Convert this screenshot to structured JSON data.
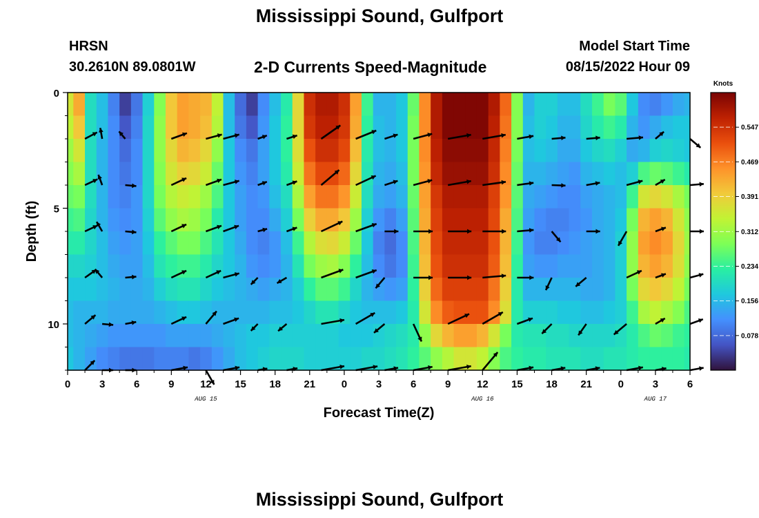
{
  "header": {
    "title": "Mississippi Sound, Gulfport",
    "station": "HRSN",
    "coords": "30.2610N  89.0801W",
    "subtitle": "2-D Currents Speed-Magnitude",
    "model_start_label": "Model Start Time",
    "model_start_value": "08/15/2022 Hour 09"
  },
  "footer": {
    "title": "Mississippi Sound, Gulfport"
  },
  "chart_data": {
    "type": "heatmap",
    "xlabel": "Forecast Time(Z)",
    "ylabel": "Depth (ft)",
    "x_range_hours": [
      0,
      54
    ],
    "y_range_ft": [
      0,
      12
    ],
    "x_ticks": [
      {
        "h": 0,
        "label": "0"
      },
      {
        "h": 3,
        "label": "3"
      },
      {
        "h": 6,
        "label": "6"
      },
      {
        "h": 9,
        "label": "9"
      },
      {
        "h": 12,
        "label": "12"
      },
      {
        "h": 15,
        "label": "15"
      },
      {
        "h": 18,
        "label": "18"
      },
      {
        "h": 21,
        "label": "21"
      },
      {
        "h": 24,
        "label": "0"
      },
      {
        "h": 27,
        "label": "3"
      },
      {
        "h": 30,
        "label": "6"
      },
      {
        "h": 33,
        "label": "9"
      },
      {
        "h": 36,
        "label": "12"
      },
      {
        "h": 39,
        "label": "15"
      },
      {
        "h": 42,
        "label": "18"
      },
      {
        "h": 45,
        "label": "21"
      },
      {
        "h": 48,
        "label": "0"
      },
      {
        "h": 51,
        "label": "3"
      },
      {
        "h": 54,
        "label": "6"
      }
    ],
    "date_labels": [
      {
        "h": 12,
        "label": "AUG 15"
      },
      {
        "h": 36,
        "label": "AUG 16"
      },
      {
        "h": 51,
        "label": "AUG 17"
      }
    ],
    "y_ticks": [
      {
        "ft": 0,
        "label": "0"
      },
      {
        "ft": 5,
        "label": "5"
      },
      {
        "ft": 10,
        "label": "10"
      }
    ],
    "colorbar": {
      "title": "Knots",
      "min": 0.0,
      "max": 0.625,
      "labels": [
        "0.078",
        "0.156",
        "0.234",
        "0.312",
        "0.391",
        "0.469",
        "0.547"
      ],
      "colors": [
        "#30123b",
        "#4454c4",
        "#4490fe",
        "#1fc8de",
        "#29efa2",
        "#7dff56",
        "#c1f334",
        "#f1ca3a",
        "#fe922a",
        "#ea4f0d",
        "#be2102",
        "#7a0403"
      ]
    },
    "depths_ft": [
      1,
      2,
      3,
      4,
      5,
      6,
      7,
      8,
      9,
      10,
      11,
      12
    ],
    "hours": [
      0,
      1,
      2,
      3,
      4,
      5,
      6,
      7,
      8,
      9,
      10,
      11,
      12,
      13,
      14,
      15,
      16,
      17,
      18,
      19,
      20,
      21,
      22,
      23,
      24,
      25,
      26,
      27,
      28,
      29,
      30,
      31,
      32,
      33,
      34,
      35,
      36,
      37,
      38,
      39,
      40,
      41,
      42,
      43,
      44,
      45,
      46,
      47,
      48,
      49,
      50,
      51,
      52,
      53,
      54
    ],
    "speed_knots": [
      [
        0.36,
        0.43,
        0.2,
        0.16,
        0.1,
        0.04,
        0.09,
        0.18,
        0.29,
        0.4,
        0.44,
        0.43,
        0.42,
        0.34,
        0.16,
        0.08,
        0.04,
        0.11,
        0.16,
        0.22,
        0.38,
        0.55,
        0.58,
        0.58,
        0.55,
        0.44,
        0.24,
        0.15,
        0.15,
        0.17,
        0.27,
        0.46,
        0.58,
        0.62,
        0.62,
        0.62,
        0.62,
        0.58,
        0.49,
        0.29,
        0.15,
        0.18,
        0.18,
        0.16,
        0.16,
        0.2,
        0.24,
        0.28,
        0.26,
        0.17,
        0.11,
        0.1,
        0.12,
        0.14,
        0.15
      ],
      [
        0.34,
        0.4,
        0.2,
        0.16,
        0.11,
        0.06,
        0.1,
        0.19,
        0.3,
        0.4,
        0.44,
        0.43,
        0.41,
        0.33,
        0.16,
        0.09,
        0.06,
        0.12,
        0.17,
        0.23,
        0.38,
        0.54,
        0.57,
        0.57,
        0.54,
        0.43,
        0.23,
        0.16,
        0.15,
        0.17,
        0.28,
        0.46,
        0.58,
        0.62,
        0.62,
        0.62,
        0.62,
        0.57,
        0.48,
        0.29,
        0.16,
        0.18,
        0.17,
        0.15,
        0.15,
        0.19,
        0.22,
        0.24,
        0.22,
        0.15,
        0.12,
        0.14,
        0.16,
        0.17,
        0.17
      ],
      [
        0.31,
        0.36,
        0.2,
        0.15,
        0.11,
        0.08,
        0.11,
        0.19,
        0.3,
        0.38,
        0.42,
        0.41,
        0.38,
        0.3,
        0.17,
        0.11,
        0.09,
        0.13,
        0.17,
        0.23,
        0.37,
        0.51,
        0.55,
        0.55,
        0.52,
        0.41,
        0.22,
        0.16,
        0.15,
        0.17,
        0.28,
        0.46,
        0.57,
        0.61,
        0.61,
        0.61,
        0.61,
        0.56,
        0.47,
        0.28,
        0.16,
        0.17,
        0.16,
        0.14,
        0.14,
        0.17,
        0.19,
        0.2,
        0.18,
        0.14,
        0.15,
        0.18,
        0.19,
        0.18,
        0.17
      ],
      [
        0.29,
        0.32,
        0.2,
        0.15,
        0.11,
        0.09,
        0.11,
        0.19,
        0.29,
        0.36,
        0.39,
        0.38,
        0.35,
        0.27,
        0.17,
        0.12,
        0.1,
        0.13,
        0.17,
        0.22,
        0.35,
        0.48,
        0.52,
        0.52,
        0.49,
        0.38,
        0.21,
        0.15,
        0.14,
        0.16,
        0.28,
        0.45,
        0.56,
        0.6,
        0.6,
        0.6,
        0.6,
        0.55,
        0.46,
        0.27,
        0.15,
        0.15,
        0.14,
        0.13,
        0.12,
        0.15,
        0.16,
        0.17,
        0.16,
        0.18,
        0.25,
        0.27,
        0.26,
        0.24,
        0.22
      ],
      [
        0.27,
        0.28,
        0.2,
        0.15,
        0.11,
        0.1,
        0.12,
        0.19,
        0.28,
        0.33,
        0.35,
        0.34,
        0.31,
        0.25,
        0.17,
        0.13,
        0.11,
        0.12,
        0.16,
        0.2,
        0.32,
        0.44,
        0.48,
        0.48,
        0.45,
        0.35,
        0.2,
        0.14,
        0.13,
        0.15,
        0.27,
        0.44,
        0.54,
        0.58,
        0.58,
        0.58,
        0.58,
        0.53,
        0.45,
        0.26,
        0.14,
        0.13,
        0.12,
        0.11,
        0.11,
        0.13,
        0.14,
        0.15,
        0.16,
        0.24,
        0.36,
        0.38,
        0.36,
        0.32,
        0.28
      ],
      [
        0.24,
        0.25,
        0.19,
        0.15,
        0.12,
        0.11,
        0.12,
        0.18,
        0.26,
        0.3,
        0.32,
        0.31,
        0.28,
        0.22,
        0.17,
        0.13,
        0.11,
        0.11,
        0.14,
        0.18,
        0.28,
        0.39,
        0.43,
        0.43,
        0.4,
        0.31,
        0.18,
        0.12,
        0.1,
        0.13,
        0.26,
        0.43,
        0.53,
        0.57,
        0.57,
        0.57,
        0.57,
        0.52,
        0.43,
        0.25,
        0.13,
        0.11,
        0.1,
        0.1,
        0.11,
        0.12,
        0.14,
        0.15,
        0.17,
        0.28,
        0.42,
        0.44,
        0.42,
        0.36,
        0.3
      ],
      [
        0.22,
        0.22,
        0.19,
        0.16,
        0.13,
        0.12,
        0.13,
        0.17,
        0.23,
        0.26,
        0.28,
        0.28,
        0.25,
        0.21,
        0.17,
        0.14,
        0.11,
        0.1,
        0.12,
        0.16,
        0.24,
        0.33,
        0.37,
        0.38,
        0.35,
        0.27,
        0.17,
        0.1,
        0.08,
        0.11,
        0.25,
        0.42,
        0.52,
        0.56,
        0.56,
        0.56,
        0.56,
        0.51,
        0.42,
        0.24,
        0.12,
        0.1,
        0.1,
        0.11,
        0.12,
        0.13,
        0.14,
        0.15,
        0.18,
        0.3,
        0.44,
        0.46,
        0.44,
        0.38,
        0.31
      ],
      [
        0.19,
        0.19,
        0.18,
        0.16,
        0.14,
        0.13,
        0.13,
        0.16,
        0.21,
        0.23,
        0.24,
        0.24,
        0.22,
        0.19,
        0.17,
        0.15,
        0.12,
        0.11,
        0.12,
        0.15,
        0.21,
        0.28,
        0.31,
        0.32,
        0.29,
        0.23,
        0.16,
        0.11,
        0.09,
        0.11,
        0.24,
        0.41,
        0.51,
        0.55,
        0.55,
        0.55,
        0.55,
        0.5,
        0.41,
        0.23,
        0.13,
        0.12,
        0.12,
        0.13,
        0.13,
        0.13,
        0.14,
        0.15,
        0.18,
        0.3,
        0.42,
        0.44,
        0.42,
        0.37,
        0.3
      ],
      [
        0.17,
        0.17,
        0.17,
        0.16,
        0.15,
        0.14,
        0.14,
        0.15,
        0.18,
        0.2,
        0.21,
        0.21,
        0.19,
        0.17,
        0.16,
        0.15,
        0.14,
        0.13,
        0.14,
        0.15,
        0.18,
        0.23,
        0.26,
        0.26,
        0.24,
        0.19,
        0.15,
        0.13,
        0.12,
        0.13,
        0.23,
        0.39,
        0.49,
        0.53,
        0.53,
        0.53,
        0.53,
        0.48,
        0.39,
        0.22,
        0.15,
        0.15,
        0.15,
        0.15,
        0.15,
        0.14,
        0.14,
        0.15,
        0.18,
        0.28,
        0.38,
        0.4,
        0.38,
        0.34,
        0.28
      ],
      [
        0.16,
        0.15,
        0.15,
        0.15,
        0.14,
        0.14,
        0.14,
        0.14,
        0.15,
        0.16,
        0.17,
        0.17,
        0.16,
        0.15,
        0.15,
        0.15,
        0.15,
        0.15,
        0.16,
        0.16,
        0.17,
        0.19,
        0.21,
        0.21,
        0.19,
        0.17,
        0.16,
        0.16,
        0.16,
        0.17,
        0.22,
        0.36,
        0.46,
        0.5,
        0.51,
        0.51,
        0.51,
        0.46,
        0.37,
        0.22,
        0.18,
        0.18,
        0.18,
        0.17,
        0.17,
        0.16,
        0.16,
        0.17,
        0.18,
        0.24,
        0.32,
        0.34,
        0.32,
        0.29,
        0.25
      ],
      [
        0.16,
        0.15,
        0.14,
        0.13,
        0.12,
        0.12,
        0.12,
        0.12,
        0.12,
        0.13,
        0.13,
        0.13,
        0.13,
        0.14,
        0.15,
        0.16,
        0.17,
        0.17,
        0.18,
        0.18,
        0.18,
        0.18,
        0.18,
        0.18,
        0.17,
        0.17,
        0.17,
        0.18,
        0.19,
        0.2,
        0.22,
        0.3,
        0.38,
        0.42,
        0.44,
        0.44,
        0.42,
        0.36,
        0.28,
        0.22,
        0.21,
        0.21,
        0.2,
        0.2,
        0.19,
        0.19,
        0.19,
        0.19,
        0.2,
        0.22,
        0.25,
        0.27,
        0.26,
        0.24,
        0.23
      ],
      [
        0.17,
        0.15,
        0.13,
        0.11,
        0.1,
        0.09,
        0.09,
        0.09,
        0.1,
        0.1,
        0.1,
        0.09,
        0.1,
        0.12,
        0.14,
        0.16,
        0.17,
        0.18,
        0.19,
        0.19,
        0.19,
        0.18,
        0.18,
        0.18,
        0.18,
        0.18,
        0.19,
        0.19,
        0.2,
        0.21,
        0.23,
        0.26,
        0.3,
        0.33,
        0.36,
        0.36,
        0.34,
        0.29,
        0.25,
        0.23,
        0.22,
        0.22,
        0.21,
        0.21,
        0.21,
        0.2,
        0.2,
        0.21,
        0.21,
        0.22,
        0.23,
        0.23,
        0.23,
        0.23,
        0.22
      ]
    ],
    "vector_depths_ft": [
      2,
      4,
      6,
      8,
      10,
      12
    ],
    "vector_hours": [
      1.5,
      3,
      5,
      9,
      12,
      13.5,
      16.5,
      19,
      22,
      25,
      27.5,
      30,
      33,
      36,
      39,
      42,
      45,
      48.5,
      51,
      54
    ],
    "vector_direction_deg": [
      [
        62,
        350,
        320,
        70,
        75,
        75,
        70,
        72,
        55,
        68,
        72,
        75,
        80,
        80,
        80,
        85,
        85,
        85,
        50,
        130
      ],
      [
        65,
        340,
        95,
        65,
        70,
        75,
        70,
        70,
        50,
        65,
        72,
        75,
        80,
        82,
        82,
        92,
        80,
        75,
        60,
        85
      ],
      [
        65,
        330,
        95,
        65,
        70,
        70,
        75,
        70,
        65,
        70,
        90,
        90,
        90,
        90,
        85,
        140,
        90,
        210,
        70,
        90
      ],
      [
        55,
        320,
        85,
        65,
        65,
        75,
        225,
        240,
        70,
        70,
        220,
        90,
        90,
        85,
        90,
        205,
        230,
        65,
        70,
        75
      ],
      [
        50,
        95,
        80,
        65,
        40,
        70,
        225,
        230,
        80,
        60,
        230,
        155,
        65,
        60,
        70,
        225,
        215,
        230,
        60,
        70
      ],
      [
        45,
        90,
        90,
        80,
        150,
        80,
        80,
        80,
        80,
        80,
        80,
        80,
        80,
        40,
        80,
        80,
        80,
        80,
        80,
        80
      ]
    ],
    "vector_magnitude_knots": [
      [
        0.25,
        0.2,
        0.15,
        0.3,
        0.3,
        0.3,
        0.1,
        0.2,
        0.45,
        0.4,
        0.25,
        0.35,
        0.5,
        0.5,
        0.3,
        0.25,
        0.25,
        0.3,
        0.2,
        0.25
      ],
      [
        0.25,
        0.2,
        0.2,
        0.3,
        0.3,
        0.3,
        0.1,
        0.2,
        0.45,
        0.4,
        0.25,
        0.35,
        0.5,
        0.5,
        0.3,
        0.25,
        0.25,
        0.3,
        0.2,
        0.25
      ],
      [
        0.25,
        0.2,
        0.2,
        0.3,
        0.3,
        0.3,
        0.1,
        0.2,
        0.45,
        0.4,
        0.25,
        0.35,
        0.5,
        0.5,
        0.3,
        0.25,
        0.25,
        0.3,
        0.2,
        0.25
      ],
      [
        0.25,
        0.2,
        0.2,
        0.3,
        0.3,
        0.3,
        0.1,
        0.2,
        0.45,
        0.4,
        0.25,
        0.35,
        0.5,
        0.5,
        0.3,
        0.25,
        0.25,
        0.3,
        0.2,
        0.25
      ],
      [
        0.25,
        0.2,
        0.2,
        0.3,
        0.3,
        0.3,
        0.1,
        0.2,
        0.45,
        0.4,
        0.25,
        0.35,
        0.5,
        0.5,
        0.3,
        0.25,
        0.25,
        0.3,
        0.2,
        0.25
      ],
      [
        0.25,
        0.2,
        0.2,
        0.3,
        0.3,
        0.3,
        0.1,
        0.2,
        0.45,
        0.4,
        0.25,
        0.35,
        0.5,
        0.5,
        0.3,
        0.25,
        0.25,
        0.3,
        0.2,
        0.25
      ]
    ]
  }
}
